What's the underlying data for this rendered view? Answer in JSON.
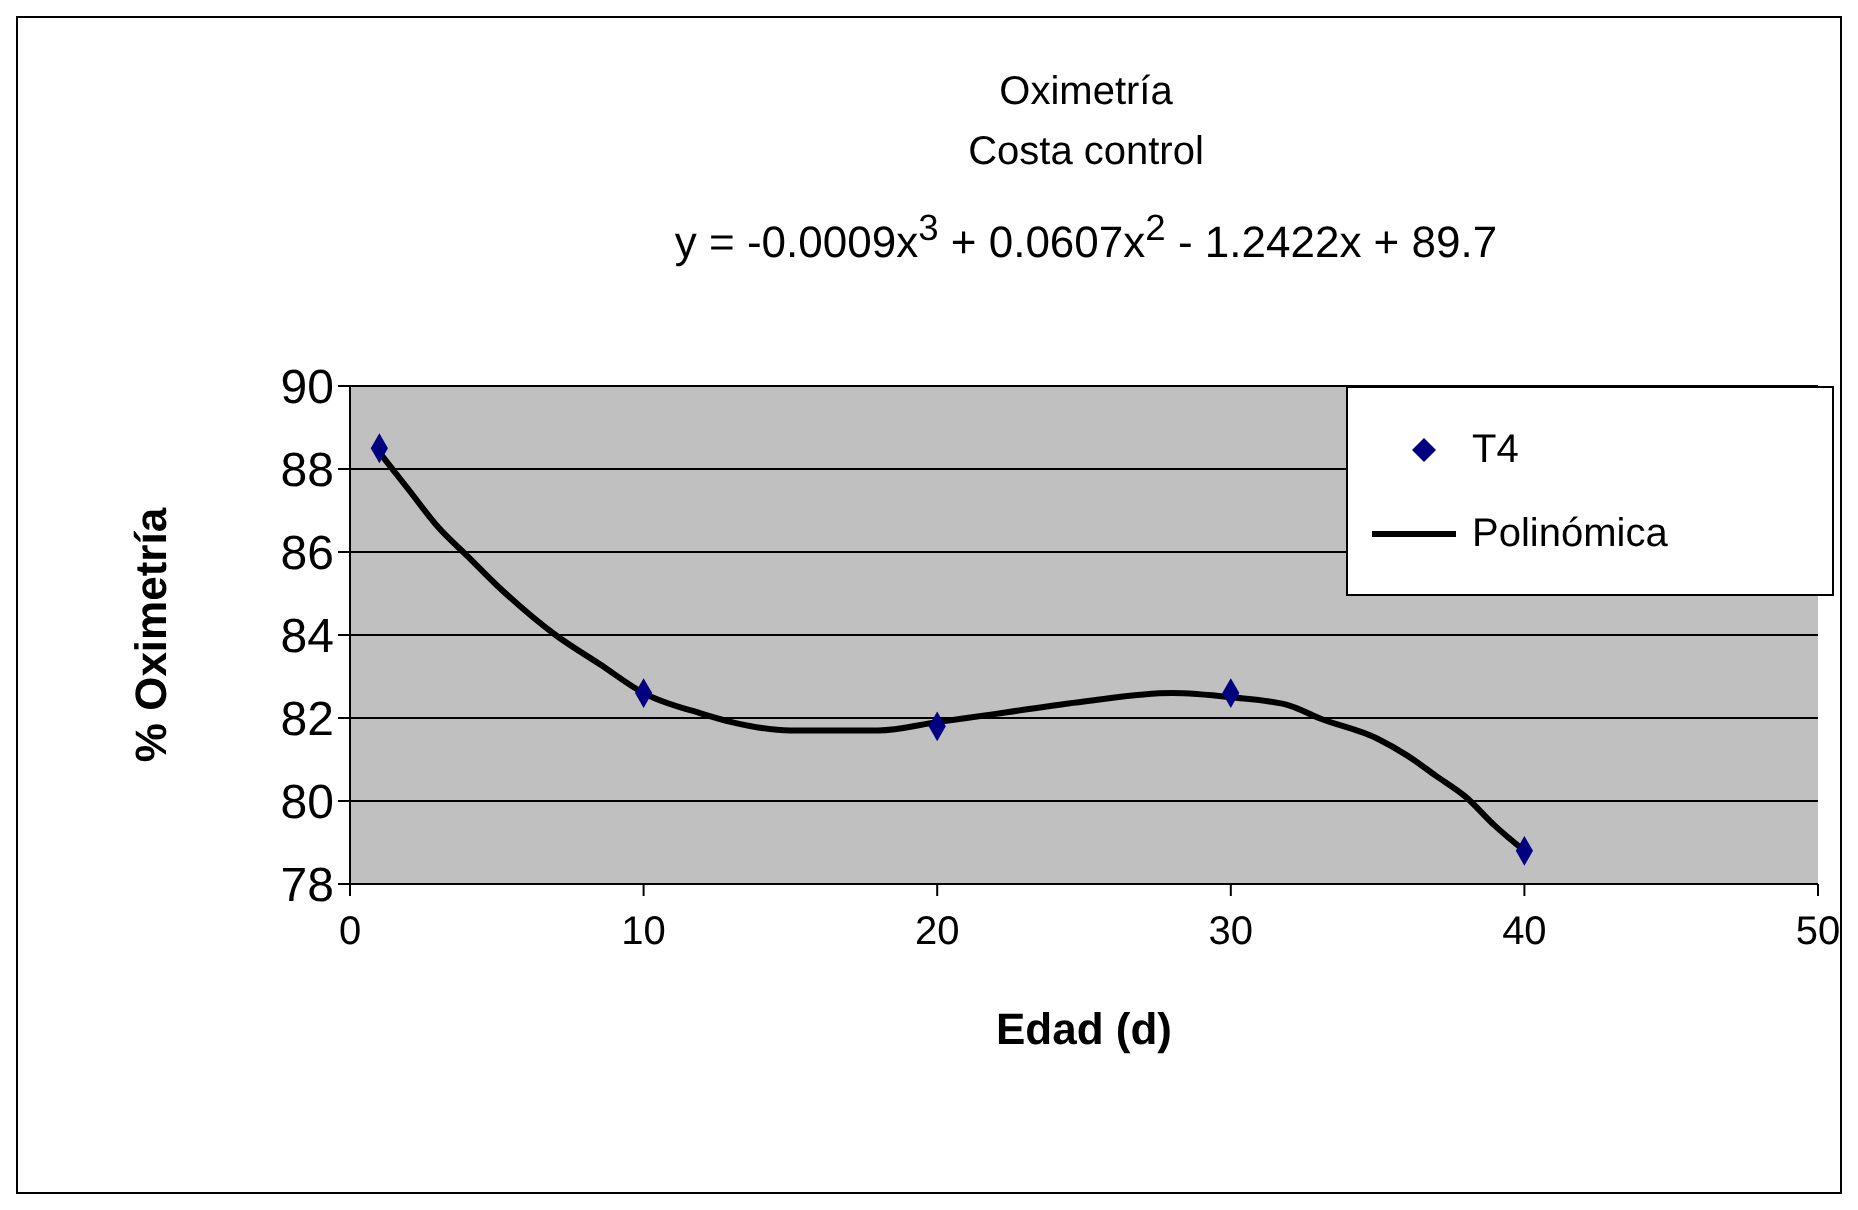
{
  "chart_data": {
    "type": "scatter",
    "title": "Oximetría",
    "subtitle": "Costa control",
    "xlabel": "Edad (d)",
    "ylabel": "% Oximetría",
    "annotations": [
      "y = -0.0009x$^{3}$ + 0.0607x$^{2}$ - 1.2422x + 89.7"
    ],
    "x": [
      1,
      10,
      20,
      30,
      40
    ],
    "series": [
      {
        "name": "T4",
        "color": "#000080",
        "marker": "diamond",
        "values": [
          88.5,
          82.6,
          81.8,
          82.6,
          78.8
        ]
      },
      {
        "name": "Polinómica",
        "type": "line",
        "color": "#000000",
        "marker": "none",
        "x": [
          1,
          2,
          3,
          4,
          5,
          7,
          8.5,
          10,
          12,
          13,
          15,
          18,
          20,
          22,
          25,
          28,
          30,
          32,
          33,
          35,
          36,
          37,
          38,
          39,
          40
        ],
        "values": [
          88.4,
          87.5,
          86.6,
          85.9,
          85.2,
          84,
          83.3,
          82.6,
          82.1,
          81.9,
          81.7,
          81.7,
          81.9,
          82.1,
          82.4,
          82.6,
          82.5,
          82.3,
          82.0,
          81.5,
          81.1,
          80.6,
          80.1,
          79.4,
          78.8
        ]
      }
    ],
    "xlim": [
      0,
      50
    ],
    "xticks": [
      0,
      10,
      20,
      30,
      40,
      50
    ],
    "ylim": [
      78,
      90
    ],
    "yticks": [
      78,
      80,
      82,
      84,
      86,
      88,
      90
    ],
    "grid": "y",
    "legend": "top right"
  }
}
